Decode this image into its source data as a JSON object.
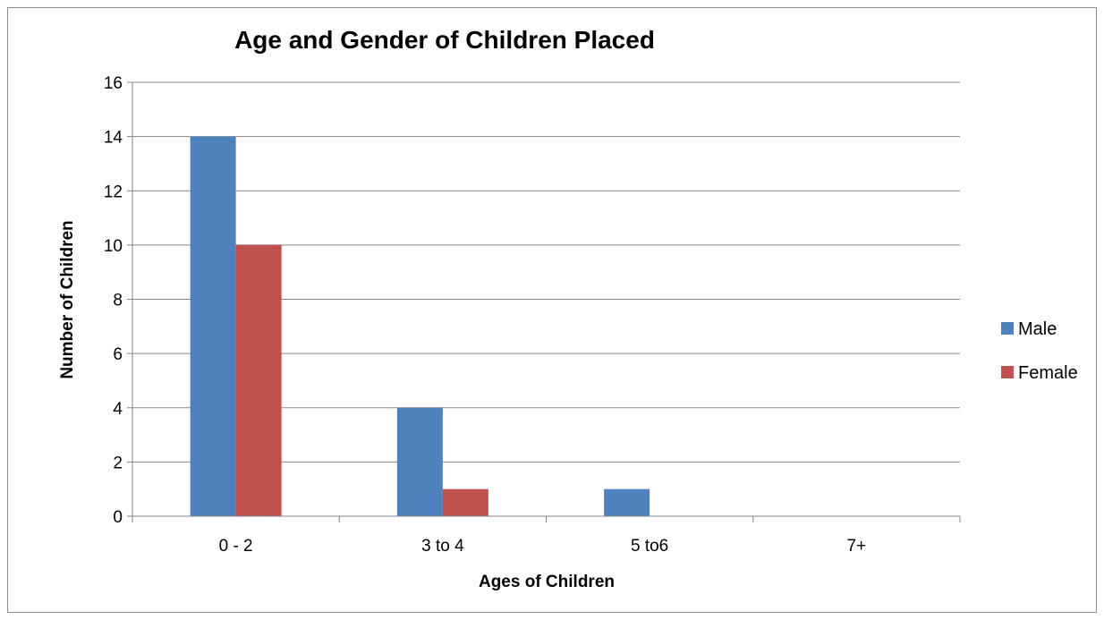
{
  "chart_data": {
    "type": "bar",
    "title": "Age and Gender of Children Placed",
    "xlabel": "Ages of Children",
    "ylabel": "Number of Children",
    "categories": [
      "0 - 2",
      "3 to 4",
      "5 to6",
      "7+"
    ],
    "series": [
      {
        "name": "Male",
        "values": [
          14,
          4,
          1,
          0
        ],
        "color": "#4f81bd"
      },
      {
        "name": "Female",
        "values": [
          10,
          1,
          0,
          0
        ],
        "color": "#c0504d"
      }
    ],
    "ylim": [
      0,
      16
    ],
    "yticks": [
      0,
      2,
      4,
      6,
      8,
      10,
      12,
      14,
      16
    ],
    "grid": true,
    "legend_position": "right"
  }
}
